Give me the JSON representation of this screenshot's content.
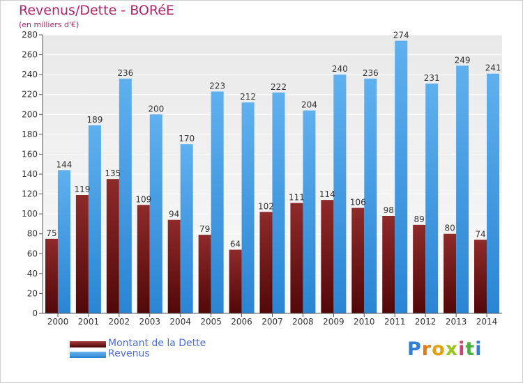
{
  "title": "Revenus/Dette - BORéE",
  "subtitle": "(en milliers d'€)",
  "legend": [
    {
      "label": "Montant de la Dette",
      "color": "#7a1414"
    },
    {
      "label": "Revenus",
      "color": "#3f9be6"
    }
  ],
  "logo": {
    "letters": [
      "P",
      "r",
      "o",
      "x",
      "i",
      "t",
      "i"
    ],
    "colors": [
      "#2f7fd8",
      "#e07a10",
      "#e0a010",
      "#9bc420",
      "#d24070",
      "#4cb040",
      "#2f7fd8"
    ]
  },
  "chart_data": {
    "type": "bar",
    "categories": [
      "2000",
      "2001",
      "2002",
      "2003",
      "2004",
      "2005",
      "2006",
      "2007",
      "2008",
      "2009",
      "2010",
      "2011",
      "2012",
      "2013",
      "2014"
    ],
    "series": [
      {
        "name": "Montant de la Dette",
        "color": "#7a1414",
        "values": [
          75,
          119,
          135,
          109,
          94,
          79,
          64,
          102,
          111,
          114,
          106,
          98,
          89,
          80,
          74
        ]
      },
      {
        "name": "Revenus",
        "color": "#3f9be6",
        "values": [
          144,
          189,
          236,
          200,
          170,
          223,
          212,
          222,
          204,
          240,
          236,
          274,
          231,
          249,
          241
        ]
      }
    ],
    "yticks": [
      "0",
      "20",
      "40",
      "60",
      "80",
      "100",
      "120",
      "140",
      "160",
      "180",
      "200",
      "220",
      "240",
      "260",
      "280"
    ],
    "ylim": [
      0,
      280
    ],
    "grid": true,
    "legend_position": "bottom-left"
  }
}
